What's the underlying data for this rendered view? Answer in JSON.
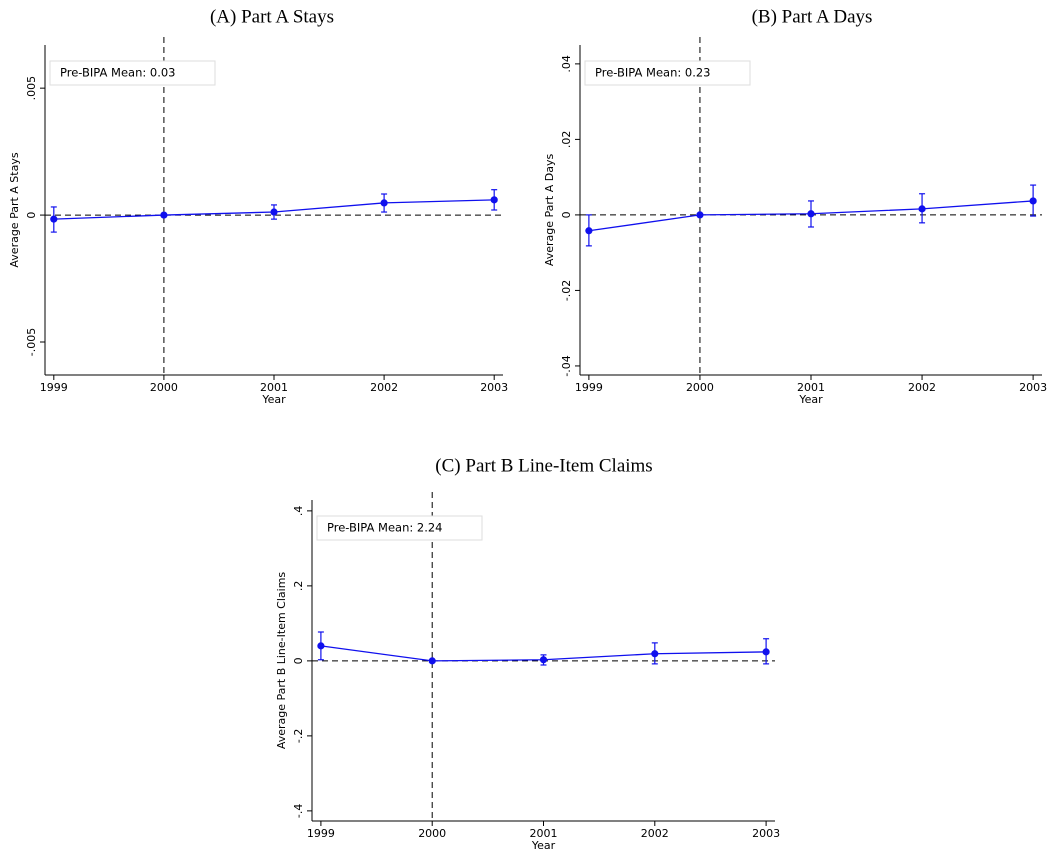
{
  "chart_data": [
    {
      "type": "line",
      "title": "(A)  Part A Stays",
      "xlabel": "Year",
      "ylabel": "Average Part A Stays",
      "annotation": "Pre-BIPA Mean: 0.03",
      "color": "#1010ee",
      "x": [
        1999,
        2000,
        2001,
        2002,
        2003
      ],
      "xlim": [
        1998.92,
        2003.08
      ],
      "xticks": [
        1999,
        2000,
        2001,
        2002,
        2003
      ],
      "ylim": [
        -0.0063,
        0.0067
      ],
      "yticks": [
        {
          "value": -0.005,
          "label": "-.005"
        },
        0,
        {
          "value": 0.005,
          "label": ".005"
        }
      ],
      "values": [
        -0.00016,
        0,
        0.00012,
        0.00048,
        0.0006
      ],
      "ci_low": [
        -0.00067,
        null,
        -0.00016,
        0.00012,
        0.0002
      ],
      "ci_high": [
        0.00032,
        null,
        0.0004,
        0.00083,
        0.001
      ],
      "reference_x": 2000,
      "reference_y": 0,
      "grid": false
    },
    {
      "type": "line",
      "title": "(B)  Part A Days",
      "xlabel": "Year",
      "ylabel": "Average Part A Days",
      "annotation": "Pre-BIPA Mean: 0.23",
      "color": "#1010ee",
      "x": [
        1999,
        2000,
        2001,
        2002,
        2003
      ],
      "xlim": [
        1998.92,
        2003.08
      ],
      "xticks": [
        1999,
        2000,
        2001,
        2002,
        2003
      ],
      "ylim": [
        -0.0424,
        0.045
      ],
      "yticks": [
        {
          "value": -0.04,
          "label": "-.04"
        },
        {
          "value": -0.02,
          "label": "-.02"
        },
        0,
        {
          "value": 0.02,
          "label": ".02"
        },
        {
          "value": 0.04,
          "label": ".04"
        }
      ],
      "values": [
        -0.0042,
        0,
        0.0003,
        0.0016,
        0.0037
      ],
      "ci_low": [
        -0.0082,
        null,
        -0.0032,
        -0.0021,
        -0.0003
      ],
      "ci_high": [
        0,
        null,
        0.0037,
        0.0056,
        0.0079
      ],
      "reference_x": 2000,
      "reference_y": 0,
      "grid": false
    },
    {
      "type": "line",
      "title": "(C)  Part B Line-Item Claims",
      "xlabel": "Year",
      "ylabel": "Average Part B Line-Item Claims",
      "annotation": "Pre-BIPA Mean: 2.24",
      "color": "#1010ee",
      "x": [
        1999,
        2000,
        2001,
        2002,
        2003
      ],
      "xlim": [
        1998.92,
        2003.08
      ],
      "xticks": [
        1999,
        2000,
        2001,
        2002,
        2003
      ],
      "ylim": [
        -0.427,
        0.429
      ],
      "yticks": [
        {
          "value": -0.4,
          "label": "-.4"
        },
        {
          "value": -0.2,
          "label": "-.2"
        },
        0,
        {
          "value": 0.2,
          "label": ".2"
        },
        {
          "value": 0.4,
          "label": ".4"
        }
      ],
      "values": [
        0.04,
        0,
        0.003,
        0.019,
        0.024
      ],
      "ci_low": [
        0.003,
        null,
        -0.011,
        -0.008,
        -0.008
      ],
      "ci_high": [
        0.077,
        null,
        0.016,
        0.048,
        0.059
      ],
      "reference_x": 2000,
      "reference_y": 0,
      "grid": false
    }
  ]
}
